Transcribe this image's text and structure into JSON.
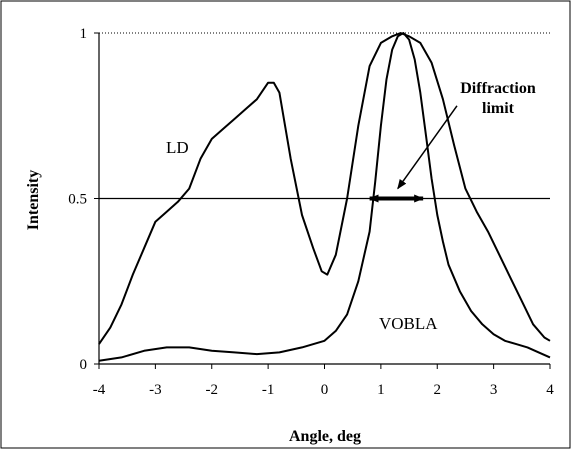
{
  "chart_data": {
    "type": "line",
    "title": "",
    "xlabel": "Angle, deg",
    "ylabel": "Intensity",
    "xlim": [
      -4,
      4
    ],
    "ylim": [
      0,
      1
    ],
    "x_ticks": [
      -4,
      -3,
      -2,
      -1,
      0,
      1,
      2,
      3,
      4
    ],
    "x_tick_labels": [
      "-4",
      "-3",
      "-2",
      "-1",
      "0",
      "1",
      "2",
      "3",
      "4"
    ],
    "y_ticks": [
      0,
      0.5,
      1
    ],
    "y_tick_labels": [
      "0",
      "0.5",
      "1"
    ],
    "grid": {
      "top_dotted_line_at": 1,
      "horizontal_reference_line_at": 0.5
    },
    "series": [
      {
        "name": "LD",
        "x": [
          -4.0,
          -3.8,
          -3.6,
          -3.4,
          -3.2,
          -3.0,
          -2.8,
          -2.6,
          -2.4,
          -2.2,
          -2.0,
          -1.8,
          -1.6,
          -1.4,
          -1.2,
          -1.0,
          -0.9,
          -0.8,
          -0.6,
          -0.4,
          -0.2,
          -0.05,
          0.05,
          0.2,
          0.4,
          0.6,
          0.8,
          1.0,
          1.2,
          1.35,
          1.5,
          1.7,
          1.9,
          2.1,
          2.3,
          2.5,
          2.7,
          2.9,
          3.1,
          3.3,
          3.5,
          3.7,
          3.9,
          4.0
        ],
        "y": [
          0.06,
          0.11,
          0.18,
          0.27,
          0.35,
          0.43,
          0.46,
          0.49,
          0.53,
          0.62,
          0.68,
          0.71,
          0.74,
          0.77,
          0.8,
          0.85,
          0.85,
          0.82,
          0.62,
          0.45,
          0.35,
          0.28,
          0.27,
          0.33,
          0.5,
          0.72,
          0.9,
          0.97,
          0.99,
          1.0,
          0.99,
          0.97,
          0.91,
          0.8,
          0.66,
          0.53,
          0.46,
          0.4,
          0.33,
          0.26,
          0.19,
          0.12,
          0.08,
          0.07
        ]
      },
      {
        "name": "VOBLA",
        "x": [
          -4.0,
          -3.6,
          -3.2,
          -2.8,
          -2.6,
          -2.4,
          -2.0,
          -1.6,
          -1.2,
          -0.8,
          -0.4,
          0.0,
          0.2,
          0.4,
          0.6,
          0.8,
          0.9,
          1.0,
          1.1,
          1.2,
          1.3,
          1.4,
          1.5,
          1.6,
          1.7,
          1.8,
          1.9,
          2.0,
          2.1,
          2.2,
          2.4,
          2.6,
          2.8,
          3.0,
          3.2,
          3.4,
          3.6,
          3.8,
          4.0
        ],
        "y": [
          0.01,
          0.02,
          0.04,
          0.05,
          0.05,
          0.05,
          0.04,
          0.035,
          0.03,
          0.035,
          0.05,
          0.07,
          0.1,
          0.15,
          0.25,
          0.4,
          0.55,
          0.72,
          0.86,
          0.95,
          0.99,
          1.0,
          0.98,
          0.92,
          0.82,
          0.69,
          0.56,
          0.45,
          0.37,
          0.3,
          0.22,
          0.16,
          0.12,
          0.09,
          0.07,
          0.06,
          0.05,
          0.035,
          0.02
        ]
      }
    ],
    "annotations": {
      "ld_label": "LD",
      "vobla_label": "VOBLA",
      "diffraction_line1": "Diffraction",
      "diffraction_line2": "limit",
      "double_arrow": {
        "from": [
          0.8,
          0.5
        ],
        "to": [
          1.75,
          0.5
        ]
      },
      "pointer_arrow": {
        "from": [
          2.35,
          0.78
        ],
        "to": [
          1.3,
          0.53
        ]
      }
    }
  }
}
